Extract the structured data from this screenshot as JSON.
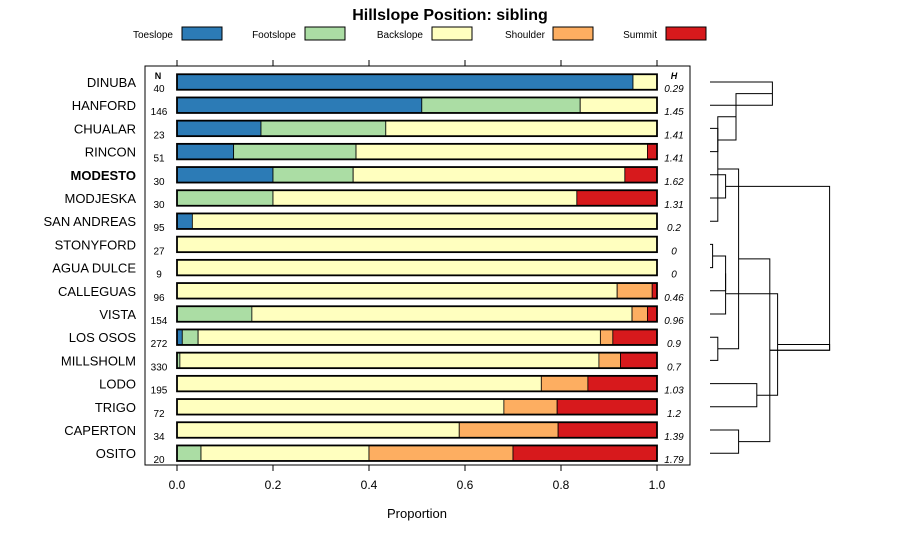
{
  "chart_data": {
    "type": "stacked-bar-horizontal",
    "title": "Hillslope Position: sibling",
    "xlabel": "Proportion",
    "xlim": [
      0,
      1
    ],
    "x_ticks": [
      "0.0",
      "0.2",
      "0.4",
      "0.6",
      "0.8",
      "1.0"
    ],
    "n_header": "N",
    "h_header": "H",
    "highlight": "MODESTO",
    "series": [
      {
        "name": "Toeslope",
        "color": "#2c7bb6"
      },
      {
        "name": "Footslope",
        "color": "#abdda4"
      },
      {
        "name": "Backslope",
        "color": "#ffffbf"
      },
      {
        "name": "Shoulder",
        "color": "#fdae61"
      },
      {
        "name": "Summit",
        "color": "#d7191c"
      }
    ],
    "rows": [
      {
        "site": "DINUBA",
        "n": "40",
        "h": "0.29",
        "values": [
          0.95,
          0,
          0.05,
          0,
          0
        ]
      },
      {
        "site": "HANFORD",
        "n": "146",
        "h": "1.45",
        "values": [
          0.51,
          0.33,
          0.16,
          0,
          0
        ]
      },
      {
        "site": "CHUALAR",
        "n": "23",
        "h": "1.41",
        "values": [
          0.175,
          0.26,
          0.565,
          0,
          0
        ]
      },
      {
        "site": "RINCON",
        "n": "51",
        "h": "1.41",
        "values": [
          0.118,
          0.255,
          0.607,
          0,
          0.02
        ]
      },
      {
        "site": "MODESTO",
        "n": "30",
        "h": "1.62",
        "values": [
          0.2,
          0.167,
          0.566,
          0,
          0.067
        ]
      },
      {
        "site": "MODJESKA",
        "n": "30",
        "h": "1.31",
        "values": [
          0,
          0.2,
          0.633,
          0,
          0.167
        ]
      },
      {
        "site": "SAN ANDREAS",
        "n": "95",
        "h": "0.2",
        "values": [
          0.032,
          0,
          0.968,
          0,
          0
        ]
      },
      {
        "site": "STONYFORD",
        "n": "27",
        "h": "0",
        "values": [
          0,
          0,
          1,
          0,
          0
        ]
      },
      {
        "site": "AGUA DULCE",
        "n": "9",
        "h": "0",
        "values": [
          0,
          0,
          1,
          0,
          0
        ]
      },
      {
        "site": "CALLEGUAS",
        "n": "96",
        "h": "0.46",
        "values": [
          0,
          0,
          0.917,
          0.073,
          0.01
        ]
      },
      {
        "site": "VISTA",
        "n": "154",
        "h": "0.96",
        "values": [
          0,
          0.156,
          0.792,
          0.032,
          0.02
        ]
      },
      {
        "site": "LOS OSOS",
        "n": "272",
        "h": "0.9",
        "values": [
          0.011,
          0.033,
          0.838,
          0.026,
          0.092
        ]
      },
      {
        "site": "MILLSHOLM",
        "n": "330",
        "h": "0.7",
        "values": [
          0,
          0.006,
          0.873,
          0.045,
          0.076
        ]
      },
      {
        "site": "LODO",
        "n": "195",
        "h": "1.03",
        "values": [
          0,
          0,
          0.759,
          0.097,
          0.144
        ]
      },
      {
        "site": "TRIGO",
        "n": "72",
        "h": "1.2",
        "values": [
          0,
          0,
          0.681,
          0.111,
          0.208
        ]
      },
      {
        "site": "CAPERTON",
        "n": "34",
        "h": "1.39",
        "values": [
          0,
          0,
          0.588,
          0.206,
          0.206
        ]
      },
      {
        "site": "OSITO",
        "n": "20",
        "h": "1.79",
        "values": [
          0,
          0.05,
          0.35,
          0.3,
          0.3
        ]
      }
    ],
    "dendrogram_merges": [
      [
        0,
        1,
        0.24
      ],
      [
        2,
        3,
        0.03
      ],
      [
        4,
        5,
        0.06
      ],
      [
        17,
        18,
        0.1
      ],
      [
        7,
        8,
        0.01
      ],
      [
        6,
        20,
        0.03
      ],
      [
        9,
        21,
        0.06
      ],
      [
        11,
        12,
        0.03
      ],
      [
        23,
        10,
        0.06
      ],
      [
        22,
        24,
        0.11
      ],
      [
        15,
        16,
        0.11
      ],
      [
        13,
        14,
        0.18
      ],
      [
        26,
        27,
        0.23
      ],
      [
        25,
        28,
        0.26
      ],
      [
        19,
        29,
        0.46
      ],
      [
        29,
        30,
        0.46
      ]
    ]
  }
}
